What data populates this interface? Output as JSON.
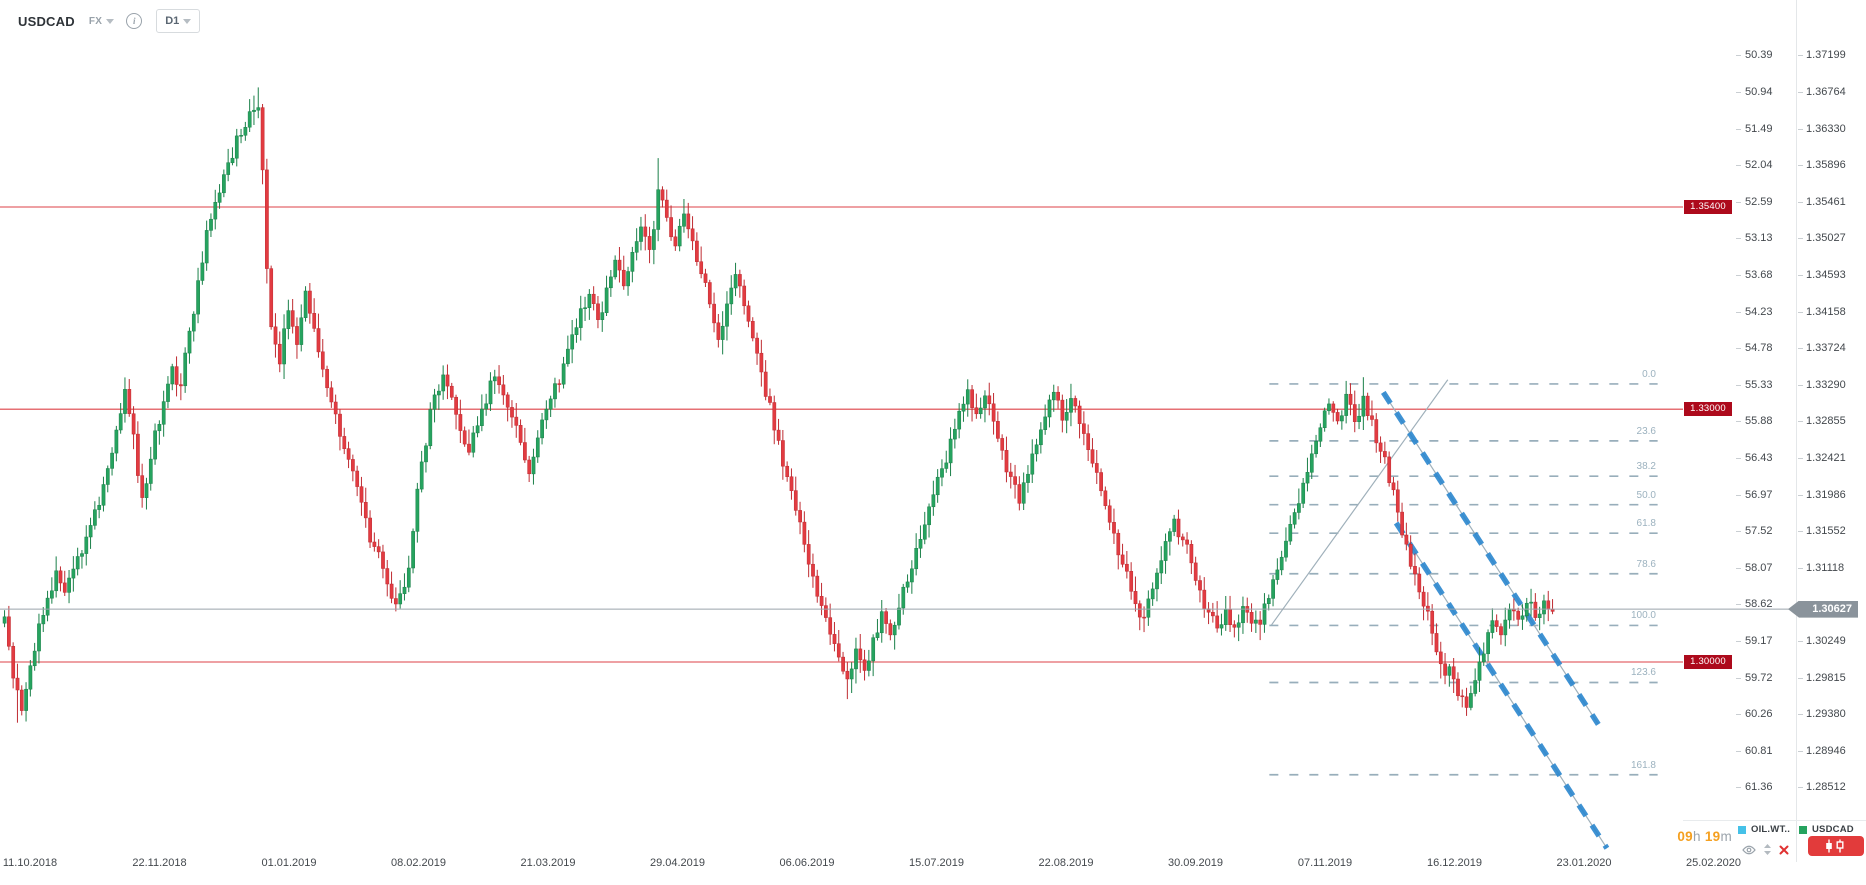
{
  "header": {
    "symbol": "USDCAD",
    "market": "FX",
    "timeframe": "D1"
  },
  "footer": {
    "countdown": [
      {
        "text": "09",
        "kind": "num"
      },
      {
        "text": "h",
        "kind": "unit"
      },
      {
        "text": " 19",
        "kind": "num"
      },
      {
        "text": "m",
        "kind": "unit"
      }
    ],
    "legend": [
      {
        "label": "OIL.WT..",
        "color": "#45c1e8"
      },
      {
        "label": "USDCAD",
        "color": "#26a35f"
      }
    ]
  },
  "colors": {
    "up_fill": "#26a35f",
    "up_stroke": "#1a8049",
    "down_fill": "#e23b41",
    "down_stroke": "#bf2c32",
    "level_line": "#d92127",
    "level_tag_bg": "#ad0a1c",
    "current_line": "#9aa3ab",
    "current_tag_bg": "#8a939b",
    "fib": "#93aab8",
    "trend_gray": "#9fb0ba",
    "channel_blue": "#2b87cf"
  },
  "chart_data": {
    "type": "candlestick",
    "symbol": "USDCAD",
    "timeframe": "D1",
    "bars_total": 361,
    "x_axis": {
      "dates": [
        "11.10.2018",
        "22.11.2018",
        "01.01.2019",
        "08.02.2019",
        "21.03.2019",
        "29.04.2019",
        "06.06.2019",
        "15.07.2019",
        "22.08.2019",
        "30.09.2019",
        "07.11.2019",
        "16.12.2019",
        "23.01.2020",
        "25.02.2020"
      ]
    },
    "y_axis_price": {
      "side": "right",
      "ticks": [
        "1.37199",
        "1.36764",
        "1.36330",
        "1.35896",
        "1.35461",
        "1.35027",
        "1.34593",
        "1.34158",
        "1.33724",
        "1.33290",
        "1.32855",
        "1.32421",
        "1.31986",
        "1.31552",
        "1.31118",
        "",
        "1.30249",
        "1.29815",
        "1.29380",
        "1.28946",
        "1.28512"
      ]
    },
    "y_axis_oil": {
      "side": "right",
      "ticks": [
        "50.39",
        "50.94",
        "51.49",
        "52.04",
        "52.59",
        "53.13",
        "53.68",
        "54.23",
        "54.78",
        "55.33",
        "55.88",
        "56.43",
        "56.97",
        "57.52",
        "58.07",
        "58.62",
        "59.17",
        "59.72",
        "60.26",
        "60.81",
        "61.36"
      ]
    },
    "levels": [
      {
        "label": "1.35400",
        "price": 1.354
      },
      {
        "label": "1.33000",
        "price": 1.33
      },
      {
        "label": "1.30000",
        "price": 1.3
      }
    ],
    "current_price": {
      "label": "1.30627",
      "price": 1.30627
    },
    "fibonacci": {
      "x_from_bar": 294.5,
      "x_to_bar": 384.8,
      "levels": [
        {
          "label": "0.0",
          "price": 1.333
        },
        {
          "label": "23.6",
          "price": 1.32624
        },
        {
          "label": "38.2",
          "price": 1.32205
        },
        {
          "label": "50.0",
          "price": 1.31867
        },
        {
          "label": "61.8",
          "price": 1.31529
        },
        {
          "label": "78.6",
          "price": 1.31047
        },
        {
          "label": "100.0",
          "price": 1.30434
        },
        {
          "label": "123.6",
          "price": 1.29757
        },
        {
          "label": "161.8",
          "price": 1.28662
        }
      ]
    },
    "trendlines": [
      {
        "name": "rising-support",
        "style": "solid-gray",
        "from": {
          "bar": 295,
          "price": 1.3044
        },
        "to": {
          "bar": 336,
          "price": 1.3335
        }
      },
      {
        "name": "channel-upper",
        "style": "blue-dashed",
        "from": {
          "bar": 321,
          "price": 1.332
        },
        "to": {
          "bar": 371,
          "price": 1.2926
        }
      },
      {
        "name": "channel-lower",
        "style": "blue-dashed",
        "from": {
          "bar": 324,
          "price": 1.3165
        },
        "to": {
          "bar": 373,
          "price": 1.2779
        }
      }
    ],
    "price_path": [
      [
        0,
        1.3052
      ],
      [
        2,
        1.2978
      ],
      [
        4,
        1.294
      ],
      [
        6,
        1.2998
      ],
      [
        9,
        1.3058
      ],
      [
        12,
        1.3108
      ],
      [
        14,
        1.3085
      ],
      [
        17,
        1.3125
      ],
      [
        20,
        1.3165
      ],
      [
        23,
        1.3212
      ],
      [
        26,
        1.3278
      ],
      [
        28,
        1.3325
      ],
      [
        30,
        1.3268
      ],
      [
        32,
        1.3195
      ],
      [
        34,
        1.3242
      ],
      [
        37,
        1.3308
      ],
      [
        39,
        1.3352
      ],
      [
        41,
        1.3325
      ],
      [
        43,
        1.3392
      ],
      [
        45,
        1.3455
      ],
      [
        47,
        1.351
      ],
      [
        49,
        1.3545
      ],
      [
        52,
        1.3595
      ],
      [
        55,
        1.3625
      ],
      [
        57,
        1.3655
      ],
      [
        59,
        1.366
      ],
      [
        60,
        1.3582
      ],
      [
        61,
        1.3465
      ],
      [
        62,
        1.3398
      ],
      [
        64,
        1.3355
      ],
      [
        66,
        1.3415
      ],
      [
        68,
        1.3378
      ],
      [
        70,
        1.3438
      ],
      [
        72,
        1.3398
      ],
      [
        74,
        1.3348
      ],
      [
        77,
        1.3295
      ],
      [
        80,
        1.3242
      ],
      [
        83,
        1.3188
      ],
      [
        86,
        1.3135
      ],
      [
        89,
        1.3095
      ],
      [
        91,
        1.3068
      ],
      [
        94,
        1.3112
      ],
      [
        97,
        1.3238
      ],
      [
        100,
        1.3318
      ],
      [
        102,
        1.3338
      ],
      [
        105,
        1.3295
      ],
      [
        108,
        1.3248
      ],
      [
        111,
        1.3298
      ],
      [
        114,
        1.3338
      ],
      [
        117,
        1.3302
      ],
      [
        120,
        1.3262
      ],
      [
        122,
        1.3222
      ],
      [
        124,
        1.3268
      ],
      [
        127,
        1.3312
      ],
      [
        130,
        1.3355
      ],
      [
        133,
        1.3398
      ],
      [
        136,
        1.3438
      ],
      [
        138,
        1.3405
      ],
      [
        140,
        1.3445
      ],
      [
        142,
        1.3478
      ],
      [
        144,
        1.3448
      ],
      [
        146,
        1.3485
      ],
      [
        148,
        1.3515
      ],
      [
        150,
        1.3488
      ],
      [
        152,
        1.3558
      ],
      [
        154,
        1.3528
      ],
      [
        156,
        1.3492
      ],
      [
        158,
        1.3532
      ],
      [
        160,
        1.3498
      ],
      [
        162,
        1.3462
      ],
      [
        164,
        1.3422
      ],
      [
        166,
        1.3382
      ],
      [
        168,
        1.3425
      ],
      [
        170,
        1.3462
      ],
      [
        172,
        1.3425
      ],
      [
        174,
        1.3385
      ],
      [
        176,
        1.3345
      ],
      [
        178,
        1.3305
      ],
      [
        180,
        1.3262
      ],
      [
        182,
        1.3222
      ],
      [
        184,
        1.3182
      ],
      [
        186,
        1.3142
      ],
      [
        188,
        1.3102
      ],
      [
        190,
        1.3065
      ],
      [
        192,
        1.3032
      ],
      [
        194,
        1.3005
      ],
      [
        196,
        1.2982
      ],
      [
        198,
        1.3018
      ],
      [
        200,
        1.2992
      ],
      [
        202,
        1.3028
      ],
      [
        204,
        1.3058
      ],
      [
        206,
        1.3032
      ],
      [
        208,
        1.3065
      ],
      [
        210,
        1.3098
      ],
      [
        212,
        1.3132
      ],
      [
        214,
        1.3165
      ],
      [
        216,
        1.3198
      ],
      [
        218,
        1.3232
      ],
      [
        220,
        1.3262
      ],
      [
        222,
        1.3295
      ],
      [
        224,
        1.3325
      ],
      [
        226,
        1.3295
      ],
      [
        228,
        1.3318
      ],
      [
        230,
        1.3285
      ],
      [
        232,
        1.3252
      ],
      [
        234,
        1.3218
      ],
      [
        236,
        1.3188
      ],
      [
        238,
        1.3222
      ],
      [
        240,
        1.3255
      ],
      [
        242,
        1.3288
      ],
      [
        244,
        1.3318
      ],
      [
        246,
        1.3288
      ],
      [
        248,
        1.3315
      ],
      [
        250,
        1.3282
      ],
      [
        252,
        1.3252
      ],
      [
        254,
        1.3222
      ],
      [
        256,
        1.3188
      ],
      [
        258,
        1.3152
      ],
      [
        260,
        1.3118
      ],
      [
        262,
        1.3082
      ],
      [
        264,
        1.3052
      ],
      [
        266,
        1.3075
      ],
      [
        268,
        1.3108
      ],
      [
        270,
        1.3142
      ],
      [
        272,
        1.3172
      ],
      [
        274,
        1.3145
      ],
      [
        276,
        1.3115
      ],
      [
        278,
        1.3085
      ],
      [
        280,
        1.3058
      ],
      [
        282,
        1.3038
      ],
      [
        284,
        1.3062
      ],
      [
        286,
        1.3042
      ],
      [
        288,
        1.3068
      ],
      [
        290,
        1.3048
      ],
      [
        292,
        1.3042
      ],
      [
        294,
        1.3078
      ],
      [
        296,
        1.3112
      ],
      [
        298,
        1.3145
      ],
      [
        300,
        1.3178
      ],
      [
        302,
        1.3212
      ],
      [
        304,
        1.3245
      ],
      [
        306,
        1.3278
      ],
      [
        308,
        1.3308
      ],
      [
        310,
        1.3285
      ],
      [
        312,
        1.3315
      ],
      [
        314,
        1.3285
      ],
      [
        316,
        1.3318
      ],
      [
        318,
        1.3285
      ],
      [
        320,
        1.3252
      ],
      [
        322,
        1.3215
      ],
      [
        324,
        1.3178
      ],
      [
        326,
        1.3142
      ],
      [
        328,
        1.3105
      ],
      [
        330,
        1.3068
      ],
      [
        332,
        1.3032
      ],
      [
        334,
        1.2998
      ],
      [
        336,
        1.2992
      ],
      [
        338,
        1.2962
      ],
      [
        340,
        1.2948
      ],
      [
        342,
        1.2978
      ],
      [
        344,
        1.3012
      ],
      [
        346,
        1.3048
      ],
      [
        348,
        1.3035
      ],
      [
        350,
        1.3062
      ],
      [
        352,
        1.3048
      ],
      [
        354,
        1.3068
      ],
      [
        356,
        1.3055
      ],
      [
        358,
        1.3072
      ],
      [
        360,
        1.3063
      ]
    ],
    "wick_extremes": [
      {
        "bar": 3,
        "low": 1.2928
      },
      {
        "bar": 57,
        "high": 1.3668
      },
      {
        "bar": 59,
        "high": 1.3682
      },
      {
        "bar": 102,
        "high": 1.3352
      },
      {
        "bar": 152,
        "high": 1.3598
      },
      {
        "bar": 196,
        "low": 1.2956
      },
      {
        "bar": 264,
        "low": 1.3038
      },
      {
        "bar": 292,
        "low": 1.3026
      },
      {
        "bar": 316,
        "high": 1.3338
      },
      {
        "bar": 340,
        "low": 1.2936
      }
    ]
  }
}
